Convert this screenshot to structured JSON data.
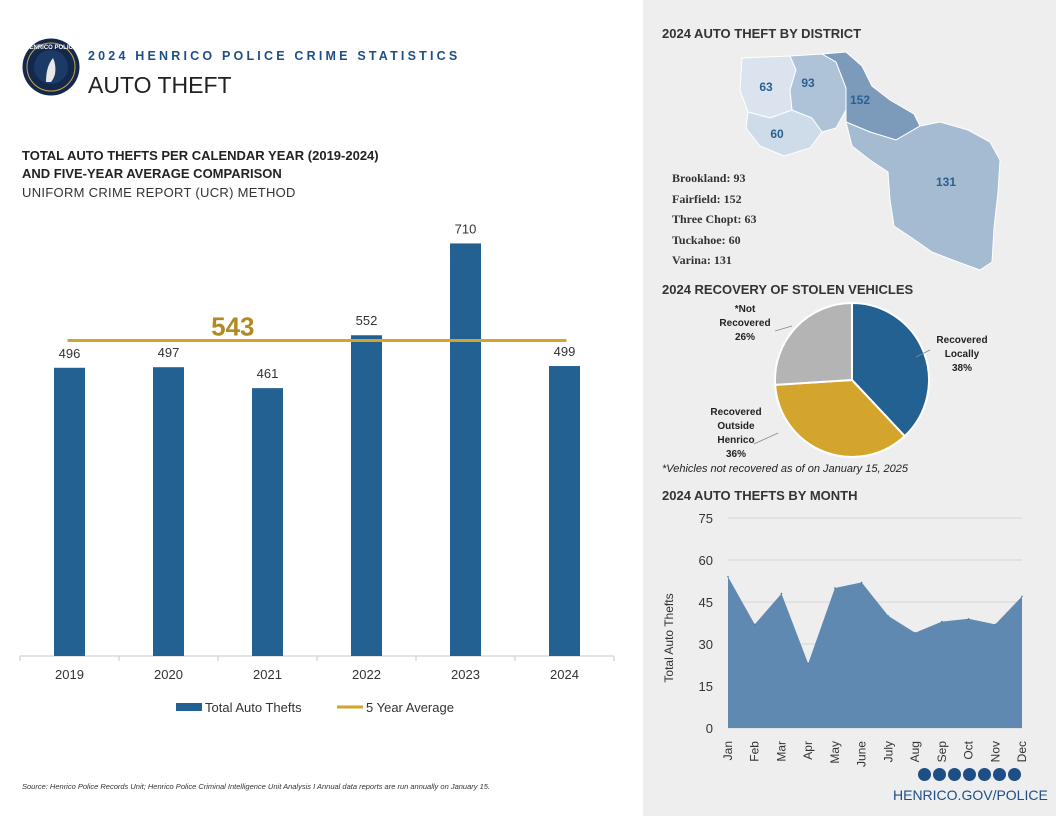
{
  "header": {
    "kicker": "2024 HENRICO POLICE CRIME STATISTICS",
    "title": "AUTO THEFT",
    "seal_text": "HENRICO POLICE"
  },
  "main_chart": {
    "heading_line1": "TOTAL AUTO THEFTS PER CALENDAR YEAR (2019-2024)",
    "heading_line2": "AND FIVE-YEAR AVERAGE COMPARISON",
    "subheading": "UNIFORM CRIME REPORT (UCR) METHOD",
    "legend_bar": "Total Auto Thefts",
    "legend_line": "5 Year Average"
  },
  "source": "Source: Henrico Police Records Unit; Henrico Police Criminal Intelligence Unit Analysis  I  Annual data reports are run annually on January 15.",
  "district": {
    "title": "2024 AUTO THEFT BY DISTRICT",
    "items": [
      "Brookland: 93",
      "Fairfield: 152",
      "Three Chopt: 63",
      "Tuckahoe: 60",
      "Varina: 131"
    ]
  },
  "recovery": {
    "title": "2024 RECOVERY OF STOLEN VEHICLES",
    "footnote": "*Vehicles not recovered as of on January 15, 2025"
  },
  "monthly": {
    "title": "2024 AUTO THEFTS BY MONTH"
  },
  "footer": {
    "site": "HENRICO.GOV/POLICE"
  },
  "colors": {
    "navy": "#1d4f86",
    "bar": "#236193",
    "gold": "#d4a52d",
    "gray": "#b4b4b4",
    "area": "#5f89b0"
  },
  "chart_data": [
    {
      "type": "bar",
      "title": "TOTAL AUTO THEFTS PER CALENDAR YEAR (2019-2024)",
      "categories": [
        "2019",
        "2020",
        "2021",
        "2022",
        "2023",
        "2024"
      ],
      "series": [
        {
          "name": "Total Auto Thefts",
          "values": [
            496,
            497,
            461,
            552,
            710,
            499
          ]
        },
        {
          "name": "5 Year Average",
          "type": "line",
          "value": 543,
          "label": "543"
        }
      ],
      "ylim": [
        0,
        740
      ]
    },
    {
      "type": "map",
      "title": "2024 AUTO THEFT BY DISTRICT",
      "labels": [
        "Three Chopt",
        "Brookland",
        "Fairfield",
        "Tuckahoe",
        "Varina"
      ],
      "values": [
        63,
        93,
        152,
        60,
        131
      ]
    },
    {
      "type": "pie",
      "title": "2024 RECOVERY OF STOLEN VEHICLES",
      "slices": [
        {
          "label_lines": [
            "Recovered",
            "Locally"
          ],
          "value": 38,
          "pct_label": "38%"
        },
        {
          "label_lines": [
            "Recovered",
            "Outside",
            "Henrico"
          ],
          "value": 36,
          "pct_label": "36%"
        },
        {
          "label_lines": [
            "*Not",
            "Recovered"
          ],
          "value": 26,
          "pct_label": "26%"
        }
      ]
    },
    {
      "type": "area",
      "title": "2024 AUTO THEFTS BY MONTH",
      "x": [
        "Jan",
        "Feb",
        "Mar",
        "Apr",
        "May",
        "June",
        "July",
        "Aug",
        "Sep",
        "Oct",
        "Nov",
        "Dec"
      ],
      "values": [
        54,
        37,
        48,
        23,
        50,
        52,
        40,
        34,
        38,
        39,
        37,
        47
      ],
      "ylabel": "Total Auto Thefts",
      "yticks": [
        0,
        15,
        30,
        45,
        60,
        75
      ],
      "ylim": [
        0,
        75
      ]
    }
  ]
}
